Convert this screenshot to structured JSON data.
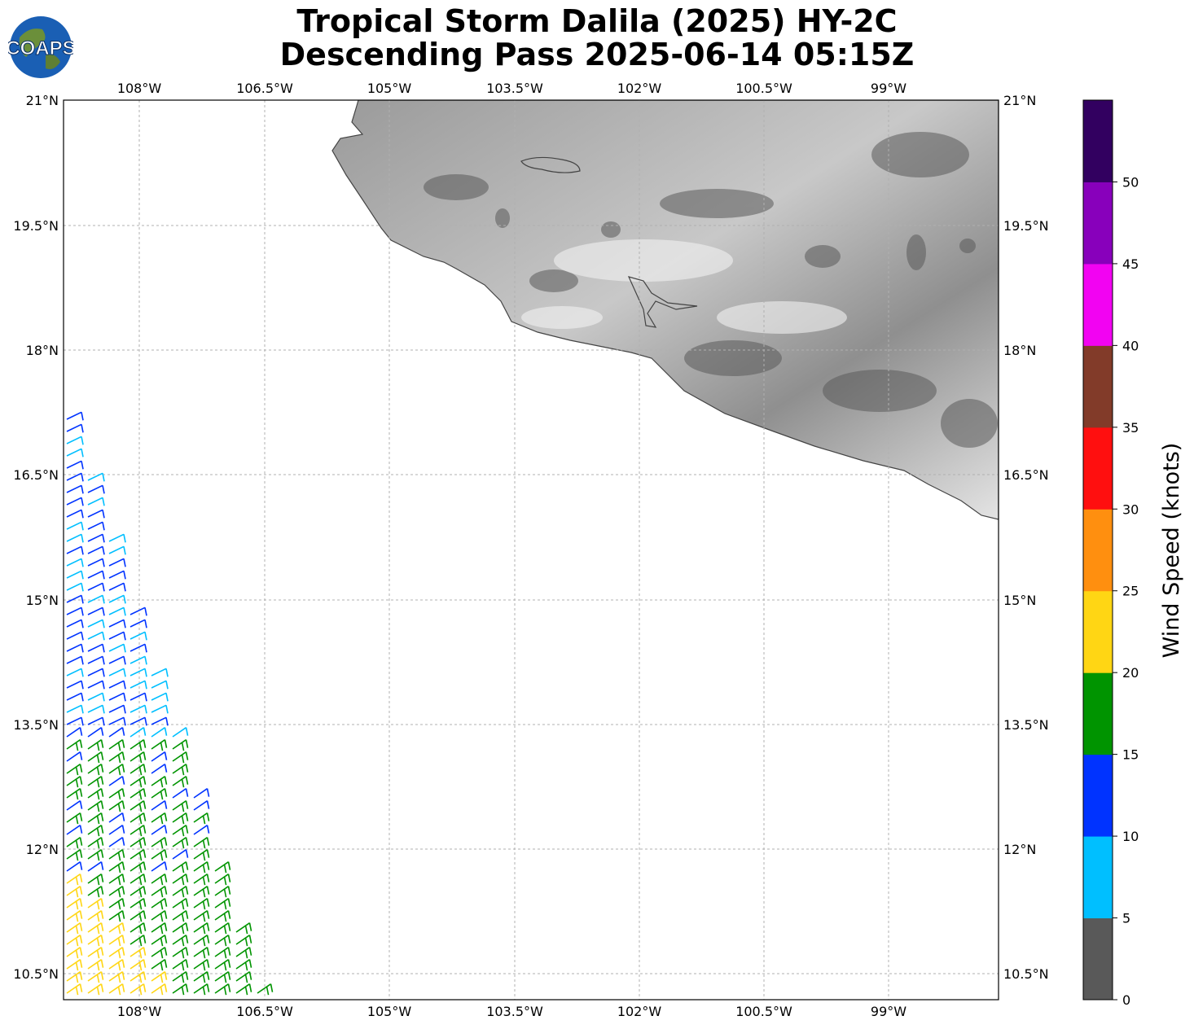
{
  "header": {
    "title_line1": "Tropical Storm Dalila (2025) HY-2C",
    "title_line2": "Descending Pass 2025-06-14 05:15Z",
    "logo_text": "COAPS"
  },
  "map": {
    "lon_labels": [
      "108°W",
      "106.5°W",
      "105°W",
      "103.5°W",
      "102°W",
      "100.5°W",
      "99°W"
    ],
    "lat_labels": [
      "21°N",
      "19.5°N",
      "18°N",
      "16.5°N",
      "15°N",
      "13.5°N",
      "12°N",
      "10.5°N"
    ]
  },
  "colorbar": {
    "title": "Wind Speed (knots)",
    "ticks": [
      "0",
      "5",
      "10",
      "15",
      "20",
      "25",
      "30",
      "35",
      "40",
      "45",
      "50"
    ],
    "colors": [
      "#595959",
      "#00bfff",
      "#0033ff",
      "#009400",
      "#ffd614",
      "#ff8f0f",
      "#ff0f0f",
      "#823b29",
      "#f203f2",
      "#8800bb",
      "#320060"
    ]
  },
  "chart_data": {
    "type": "map",
    "title": "Tropical Storm Dalila (2025) HY-2C Descending Pass 2025-06-14 05:15Z",
    "lon_range": [
      -109,
      -97.8
    ],
    "lat_range": [
      10.2,
      21
    ],
    "legend": "Wind Speed (knots)"
  }
}
